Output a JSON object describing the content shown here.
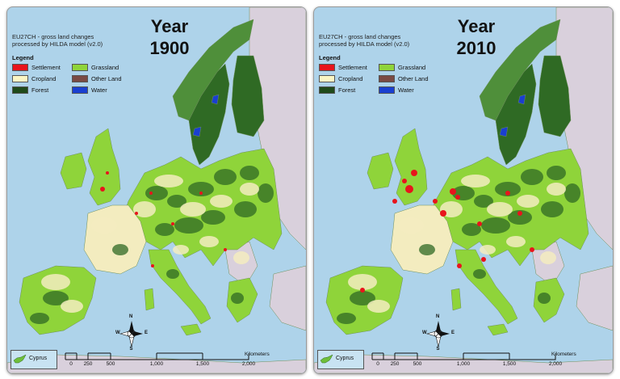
{
  "panels": [
    {
      "title_line1": "EU27CH - gross land changes",
      "title_line2": "processed by HILDA model (v2.0)",
      "year_label": "Year",
      "year_value": "1900",
      "legend_title": "Legend",
      "inset_label": "Cyprus"
    },
    {
      "title_line1": "EU27CH - gross land changes",
      "title_line2": "processed by HILDA model (v2.0)",
      "year_label": "Year",
      "year_value": "2010",
      "legend_title": "Legend",
      "inset_label": "Cyprus"
    }
  ],
  "legend_items": [
    {
      "label": "Settlement",
      "color": "#e8141c"
    },
    {
      "label": "Grassland",
      "color": "#8fd43a"
    },
    {
      "label": "Cropland",
      "color": "#fbf6c4"
    },
    {
      "label": "Other Land",
      "color": "#7a4a44"
    },
    {
      "label": "Forest",
      "color": "#1f4a1a"
    },
    {
      "label": "Water",
      "color": "#1a3fd0"
    }
  ],
  "scale": {
    "ticks": [
      "0",
      "250",
      "500",
      "1,000",
      "1,500",
      "2,000"
    ],
    "unit": "Kilometers"
  },
  "compass": {
    "n": "N",
    "s": "S",
    "e": "E",
    "w": "W"
  },
  "colors": {
    "sea": "#aed3ea",
    "non_eu_land": "#d9d0dc",
    "grassland": "#8fd43a",
    "cropland": "#f3ecbf",
    "forest": "#2f6a24",
    "settlement": "#e8141c",
    "water": "#1a3fd0"
  }
}
